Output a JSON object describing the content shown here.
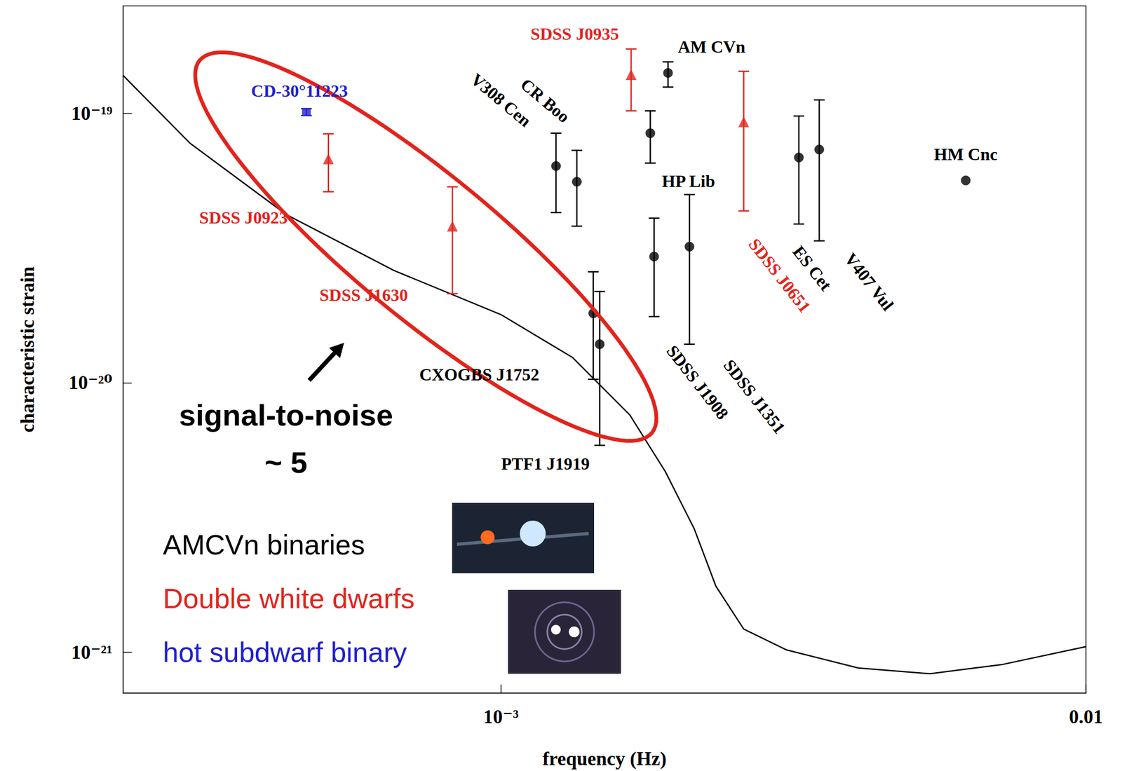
{
  "chart_data": {
    "type": "scatter",
    "x_label": "frequency (Hz)",
    "y_label": "characteristic strain",
    "log": true,
    "grid": false,
    "legend": "lower left",
    "xlim": [
      0.000226,
      0.01
    ],
    "ylim": [
      7.06e-22,
      2.5e-19
    ],
    "xticks": [
      {
        "value": 0.001,
        "label": "10⁻³"
      },
      0.01
    ],
    "yticks": [
      {
        "value": 1e-21,
        "label": "10⁻²¹"
      },
      {
        "value": 1e-20,
        "label": "10⁻²⁰"
      },
      {
        "value": 1e-19,
        "label": "10⁻¹⁹"
      }
    ],
    "annotations": [
      "signal-to-noise",
      "~ 5"
    ],
    "series": [
      {
        "name": "AMCVn binaries",
        "color": "#000000",
        "marker": "circle",
        "labels": [
          "AM CVn",
          "CR Boo",
          "V308 Cen",
          "HP Lib",
          "CXOGBS J1752",
          "PTF1 J1919",
          "SDSS J1908",
          "SDSS J1351",
          "ES Cet",
          "V407 Vul",
          "HM Cnc"
        ],
        "x": [
          0.00193,
          0.001242,
          0.001348,
          0.0018,
          0.001438,
          0.001475,
          0.001827,
          0.0021,
          0.00323,
          0.0035,
          0.00623
        ],
        "values": [
          1.41e-19,
          6.37e-20,
          5.57e-20,
          8.43e-20,
          1.81e-20,
          1.39e-20,
          2.94e-20,
          3.2e-20,
          6.85e-20,
          7.33e-20,
          5.63e-20
        ],
        "error_low": [
          1.25e-19,
          4.28e-20,
          3.81e-20,
          6.53e-20,
          1.03e-20,
          5.86e-21,
          1.76e-20,
          1.39e-20,
          3.88e-20,
          3.36e-20,
          null
        ],
        "error_high": [
          1.55e-19,
          8.43e-20,
          7.28e-20,
          1.02e-19,
          2.58e-20,
          2.18e-20,
          4.08e-20,
          4.99e-20,
          9.76e-20,
          1.12e-19,
          null
        ]
      },
      {
        "name": "Double white dwarfs",
        "color": "#e3231b",
        "marker": "triangle",
        "labels": [
          "SDSS J0923",
          "SDSS J1630",
          "SDSS J0935",
          "SDSS J0651"
        ],
        "x": [
          0.000507,
          0.000826,
          0.001669,
          0.0026
        ],
        "values": [
          6.77e-20,
          3.81e-20,
          1.39e-19,
          9.29e-20
        ],
        "error_low": [
          5.11e-20,
          2.14e-20,
          1.02e-19,
          4.34e-20
        ],
        "error_high": [
          8.38e-20,
          5.33e-20,
          1.73e-19,
          1.43e-19
        ]
      },
      {
        "name": "hot subdwarf binary",
        "color": "#2020d0",
        "marker": "square",
        "labels": [
          "CD-30°11223"
        ],
        "x": [
          0.000465
        ],
        "values": [
          1.01e-19
        ],
        "error_low": [
          9.8e-20
        ],
        "error_high": [
          1.04e-19
        ]
      }
    ],
    "curve": {
      "type": "line",
      "color": "#000000",
      "x": [
        0.000226,
        0.000294,
        0.00043,
        0.000656,
        0.001,
        0.001326,
        0.00166,
        0.00191,
        0.00214,
        0.00233,
        0.0026,
        0.00308,
        0.00408,
        0.00541,
        0.00717,
        0.01
      ],
      "values": [
        1.38e-19,
        7.74e-20,
        4.2e-20,
        2.61e-20,
        1.79e-20,
        1.24e-20,
        7.6e-21,
        4.68e-21,
        2.87e-21,
        1.76e-21,
        1.22e-21,
        1.02e-21,
        8.75e-22,
        8.33e-22,
        9e-22,
        1.05e-21
      ]
    }
  }
}
